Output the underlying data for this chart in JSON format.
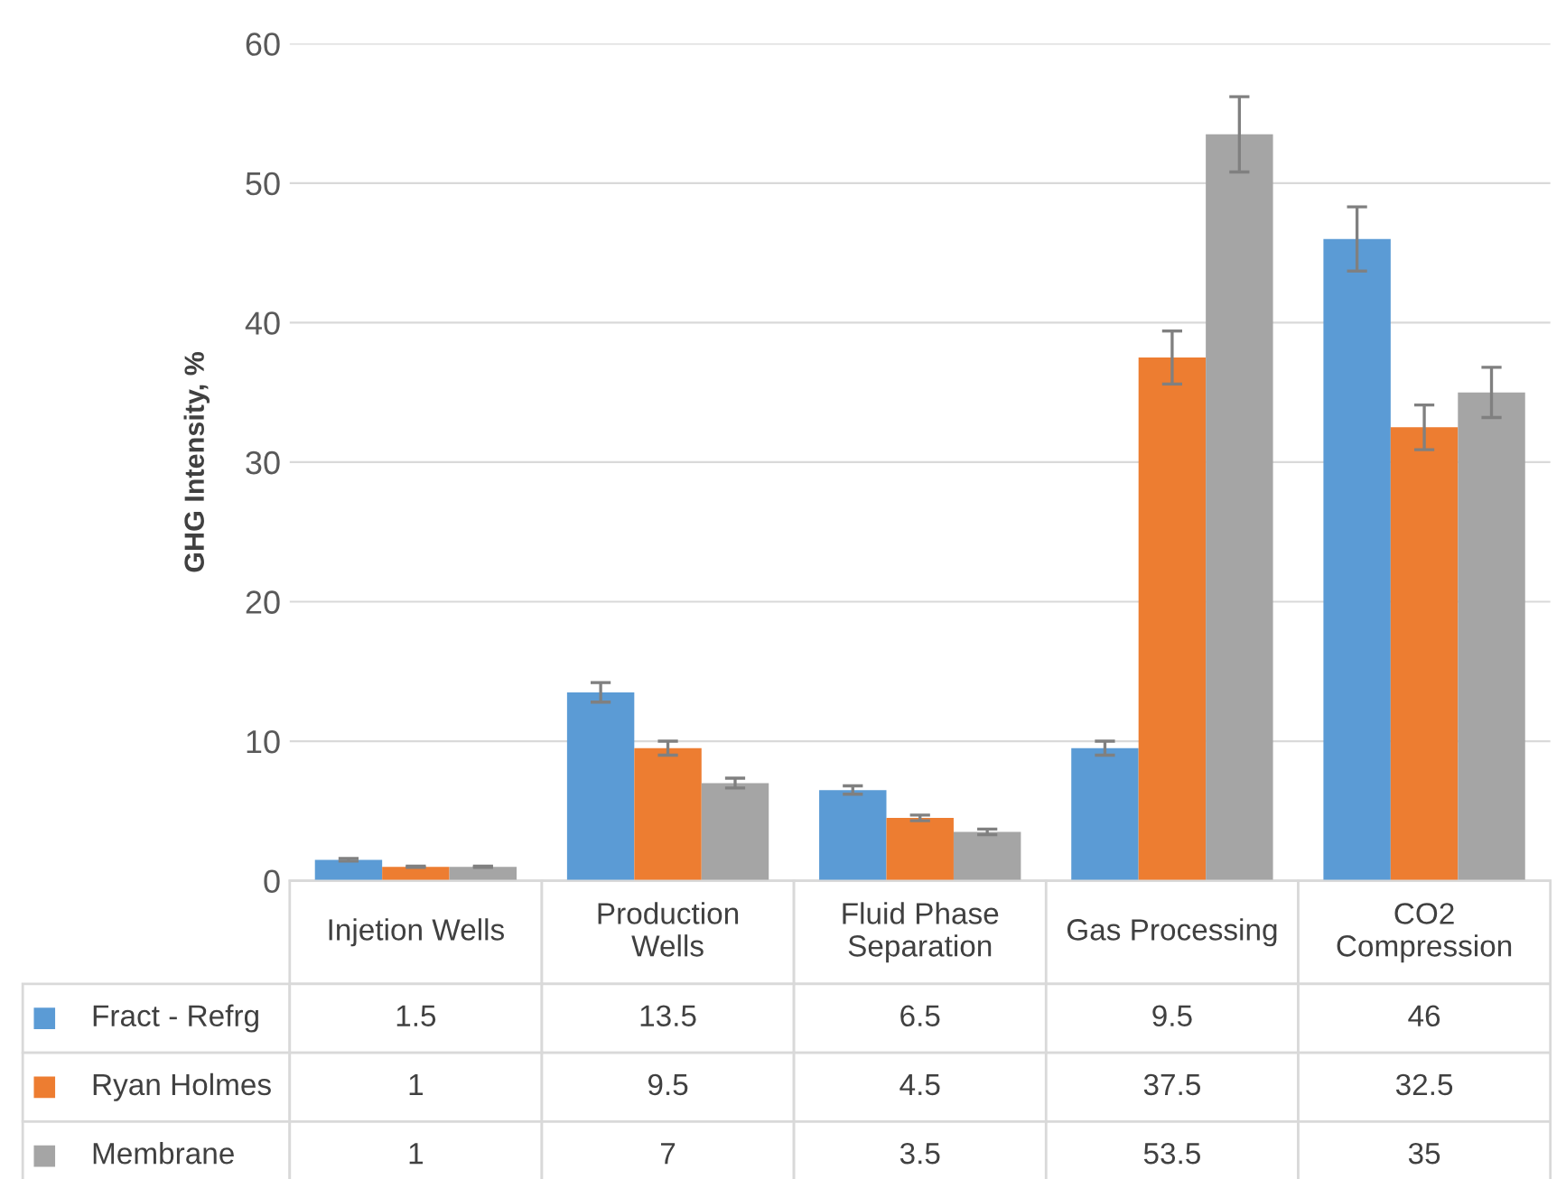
{
  "chart_data": {
    "type": "bar",
    "ylabel": "GHG Intensity, %",
    "categories": [
      "Injetion Wells",
      "Production\nWells",
      "Fluid Phase\nSeparation",
      "Gas Processing",
      "CO2\nCompression"
    ],
    "series": [
      {
        "name": "Fract - Refrg",
        "color": "#5b9bd5",
        "values": [
          1.5,
          13.5,
          6.5,
          9.5,
          46
        ],
        "errors": [
          0.1,
          0.7,
          0.3,
          0.5,
          2.3
        ]
      },
      {
        "name": "Ryan Holmes",
        "color": "#ed7d31",
        "values": [
          1,
          9.5,
          4.5,
          37.5,
          32.5
        ],
        "errors": [
          0.05,
          0.5,
          0.2,
          1.9,
          1.6
        ]
      },
      {
        "name": "Membrane",
        "color": "#a5a5a5",
        "values": [
          1,
          7,
          3.5,
          53.5,
          35
        ],
        "errors": [
          0.05,
          0.35,
          0.2,
          2.7,
          1.8
        ]
      }
    ],
    "ylim": [
      0,
      60
    ],
    "yticks": [
      0,
      10,
      20,
      30,
      40,
      50,
      60
    ],
    "grid": "y",
    "legend": "bottom",
    "data_labels": true
  }
}
